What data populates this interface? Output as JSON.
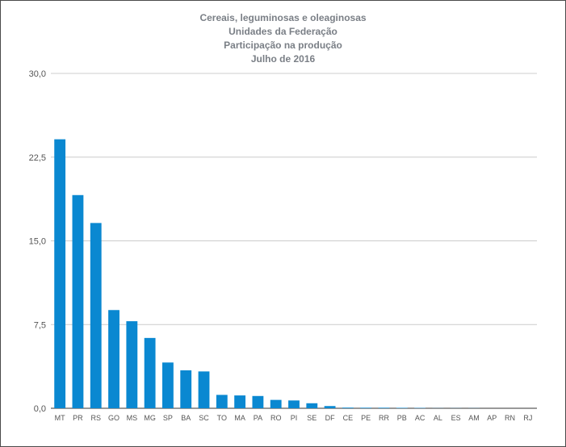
{
  "chart_data": {
    "type": "bar",
    "title_lines": [
      "Cereais, leguminosas e oleaginosas",
      "Unidades da Federação",
      "Participação na produção",
      "Julho de 2016"
    ],
    "xlabel": "",
    "ylabel": "",
    "ylim": [
      0,
      30
    ],
    "yticks": [
      "0,0",
      "7,5",
      "15,0",
      "22,5",
      "30,0"
    ],
    "ytick_values": [
      0,
      7.5,
      15,
      22.5,
      30
    ],
    "grid": true,
    "legend": "none",
    "bar_color": "#0a88d1",
    "categories": [
      "MT",
      "PR",
      "RS",
      "GO",
      "MS",
      "MG",
      "SP",
      "BA",
      "SC",
      "TO",
      "MA",
      "PA",
      "RO",
      "PI",
      "SE",
      "DF",
      "CE",
      "PE",
      "RR",
      "PB",
      "AC",
      "AL",
      "ES",
      "AM",
      "AP",
      "RN",
      "RJ"
    ],
    "values": [
      24.1,
      19.1,
      16.6,
      8.8,
      7.8,
      6.3,
      4.1,
      3.4,
      3.3,
      1.2,
      1.15,
      1.1,
      0.75,
      0.7,
      0.45,
      0.2,
      0.06,
      0.05,
      0.05,
      0.04,
      0.03,
      0.01,
      0.01,
      0.01,
      0.0,
      0.0,
      0.0
    ]
  }
}
